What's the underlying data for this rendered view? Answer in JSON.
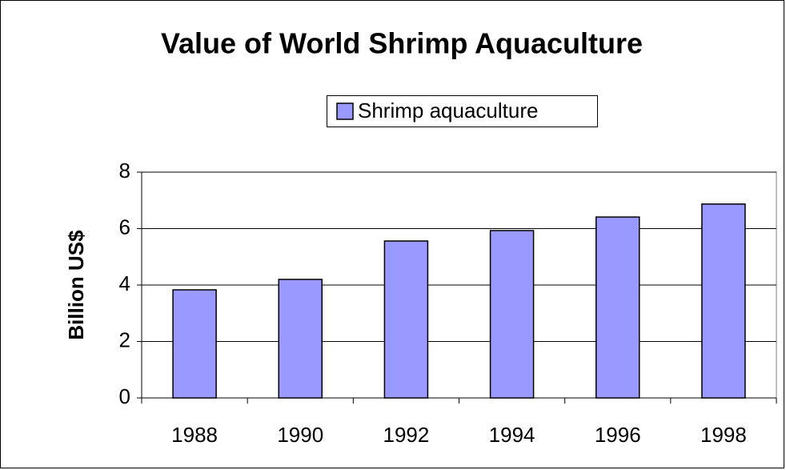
{
  "chart_data": {
    "type": "bar",
    "title": "Value of World Shrimp Aquaculture",
    "ylabel": "Billion US$",
    "categories": [
      "1988",
      "1990",
      "1992",
      "1994",
      "1996",
      "1998"
    ],
    "series": [
      {
        "name": "Shrimp aquaculture",
        "color": "#9999ff",
        "values": [
          3.83,
          4.2,
          5.56,
          5.93,
          6.41,
          6.87
        ]
      }
    ],
    "ylim": [
      0,
      8
    ],
    "yticks": [
      0,
      2,
      4,
      6,
      8
    ],
    "grid": true,
    "legend": "top"
  }
}
